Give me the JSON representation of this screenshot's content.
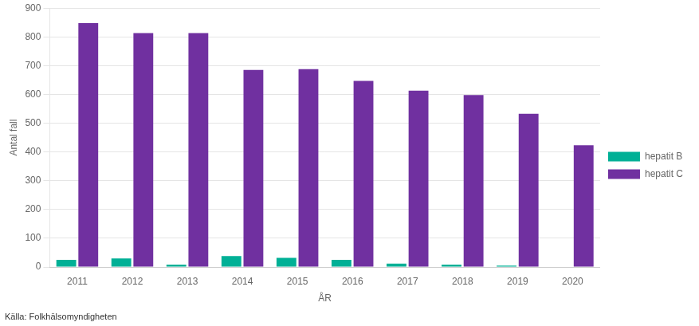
{
  "chart_data": {
    "type": "bar",
    "xlabel": "ÅR",
    "ylabel": "Antal fall",
    "annotation": "Källa: Folkhälsomyndigheten",
    "categories": [
      "2011",
      "2012",
      "2013",
      "2014",
      "2015",
      "2016",
      "2017",
      "2018",
      "2019",
      "2020"
    ],
    "series": [
      {
        "name": "hepatit B",
        "color": "#00B096",
        "values": [
          25,
          30,
          8,
          38,
          32,
          25,
          12,
          8,
          5,
          0
        ]
      },
      {
        "name": "hepatit C",
        "color": "#7030A0",
        "values": [
          848,
          813,
          813,
          685,
          688,
          647,
          613,
          598,
          533,
          423
        ]
      }
    ],
    "ylim": [
      0,
      900
    ],
    "yticks": [
      0,
      100,
      200,
      300,
      400,
      500,
      600,
      700,
      800,
      900
    ],
    "grid": true,
    "legend": "right"
  }
}
